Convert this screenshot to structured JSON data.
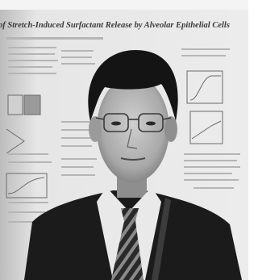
{
  "poster": {
    "title": "of Stretch-Induced Surfactant Release by Alveolar Epithelial Cells"
  }
}
